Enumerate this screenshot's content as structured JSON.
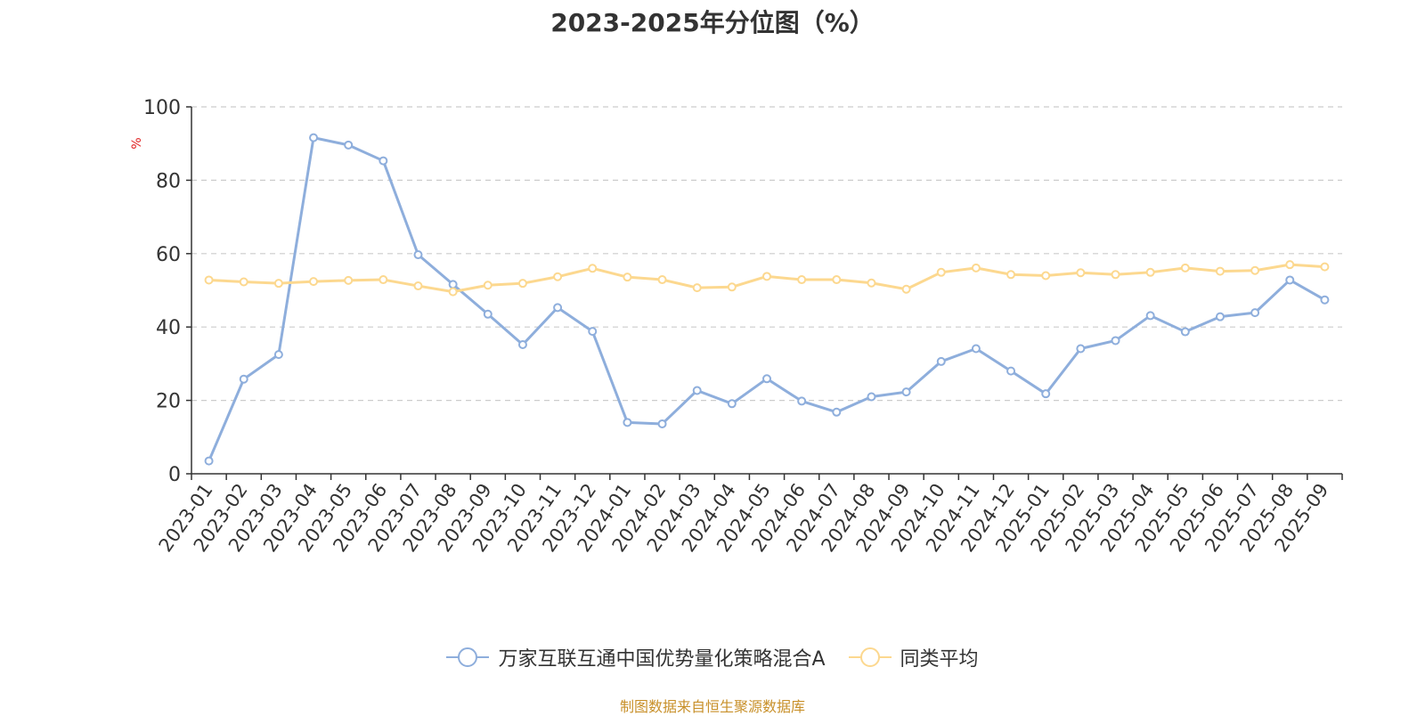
{
  "chart_data": {
    "type": "line",
    "title": "2023-2025年分位图（%）",
    "ylabel": "%",
    "ylim": [
      0,
      100
    ],
    "yticks": [
      0,
      20,
      40,
      60,
      80,
      100
    ],
    "grid": true,
    "legend_position": "bottom",
    "categories": [
      "2023-01",
      "2023-02",
      "2023-03",
      "2023-04",
      "2023-05",
      "2023-06",
      "2023-07",
      "2023-08",
      "2023-09",
      "2023-10",
      "2023-11",
      "2023-12",
      "2024-01",
      "2024-02",
      "2024-03",
      "2024-04",
      "2024-05",
      "2024-06",
      "2024-07",
      "2024-08",
      "2024-09",
      "2024-10",
      "2024-11",
      "2024-12",
      "2025-01",
      "2025-02",
      "2025-03",
      "2025-04",
      "2025-05",
      "2025-06",
      "2025-07",
      "2025-08",
      "2025-09"
    ],
    "series": [
      {
        "name": "万家互联互通中国优势量化策略混合A",
        "color": "#8eaedc",
        "values": [
          3.5,
          25.8,
          32.5,
          91.6,
          89.6,
          85.3,
          59.7,
          51.6,
          43.5,
          35.2,
          45.3,
          38.8,
          14.0,
          13.6,
          22.7,
          19.1,
          25.9,
          19.8,
          16.8,
          21.0,
          22.3,
          30.6,
          34.1,
          28.0,
          21.8,
          34.1,
          36.3,
          43.1,
          38.7,
          42.8,
          43.9,
          52.8,
          47.4
        ]
      },
      {
        "name": "同类平均",
        "color": "#fcd88f",
        "values": [
          52.8,
          52.3,
          51.9,
          52.4,
          52.7,
          52.9,
          51.2,
          49.6,
          51.4,
          51.9,
          53.7,
          56.0,
          53.6,
          52.9,
          50.7,
          50.9,
          53.8,
          52.9,
          52.9,
          52.0,
          50.3,
          54.9,
          56.1,
          54.3,
          54.0,
          54.8,
          54.3,
          54.9,
          56.1,
          55.2,
          55.4,
          57.0,
          56.4
        ]
      }
    ]
  },
  "footer": {
    "source": "制图数据来自恒生聚源数据库"
  }
}
